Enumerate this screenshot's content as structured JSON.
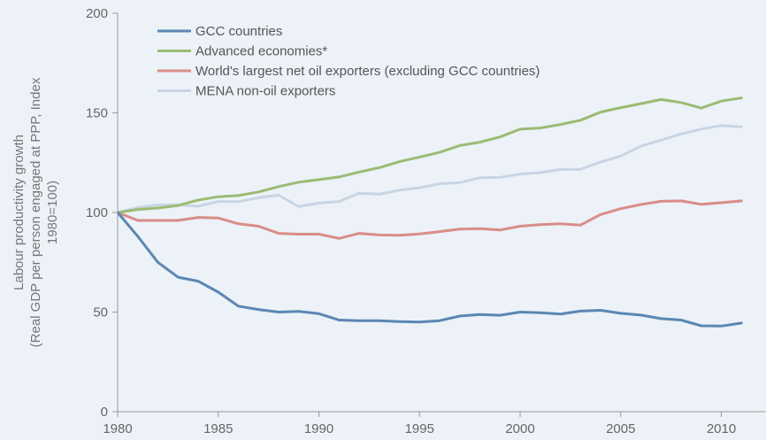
{
  "chart_data": {
    "type": "line",
    "title": "",
    "ylabel_lines": [
      "Labour productivity growth",
      "(Real GDP per person engaged at PPP, Index",
      "1980=100)"
    ],
    "xlabel": "",
    "x": [
      1980,
      1981,
      1982,
      1983,
      1984,
      1985,
      1986,
      1987,
      1988,
      1989,
      1990,
      1991,
      1992,
      1993,
      1994,
      1995,
      1996,
      1997,
      1998,
      1999,
      2000,
      2001,
      2002,
      2003,
      2004,
      2005,
      2006,
      2007,
      2008,
      2009,
      2010,
      2011
    ],
    "xlim": [
      1980,
      2011
    ],
    "ylim": [
      0,
      200
    ],
    "x_ticks": [
      1980,
      1985,
      1990,
      1995,
      2000,
      2005,
      2010
    ],
    "y_ticks": [
      0,
      50,
      100,
      150,
      200
    ],
    "grid": false,
    "legend_position": "top-left",
    "series": [
      {
        "name": "GCC countries",
        "color": "#5b87b2",
        "values": [
          100,
          88,
          75,
          67.5,
          65.5,
          60,
          53,
          51.3,
          50,
          50.3,
          49.2,
          46,
          45.7,
          45.7,
          45.2,
          45,
          45.7,
          48,
          48.8,
          48.4,
          50,
          49.7,
          49,
          50.5,
          50.9,
          49.4,
          48.5,
          46.7,
          46,
          43.1,
          43,
          44.5
        ]
      },
      {
        "name": "Advanced economies*",
        "color": "#9cbb74",
        "values": [
          100,
          101.5,
          102.2,
          103.5,
          106.2,
          107.9,
          108.5,
          110.3,
          113,
          115.2,
          116.5,
          117.8,
          120.3,
          122.5,
          125.5,
          127.8,
          130.2,
          133.6,
          135.3,
          137.9,
          141.8,
          142.4,
          144.2,
          146.3,
          150.4,
          152.6,
          154.6,
          156.7,
          155.2,
          152.4,
          155.9,
          157.5
        ]
      },
      {
        "name": "World's largest net oil exporters (excluding GCC countries)",
        "color": "#d98d86",
        "values": [
          100,
          96,
          96,
          96,
          97.5,
          97.2,
          94.3,
          93.1,
          89.5,
          89.1,
          89.1,
          87,
          89.5,
          88.7,
          88.6,
          89.2,
          90.4,
          91.7,
          91.9,
          91.2,
          93.1,
          93.9,
          94.3,
          93.7,
          99,
          101.9,
          104,
          105.6,
          105.8,
          104.1,
          104.9,
          105.8
        ]
      },
      {
        "name": "MENA non-oil exporters",
        "color": "#c8d5e4",
        "values": [
          100,
          102.5,
          103.8,
          103.8,
          103.1,
          105.5,
          105.4,
          107.4,
          108.7,
          103,
          104.7,
          105.5,
          109.6,
          109.2,
          111.2,
          112.4,
          114.4,
          115,
          117.4,
          117.6,
          119.3,
          120,
          121.6,
          121.7,
          125.3,
          128.3,
          133.3,
          136.3,
          139.4,
          141.8,
          143.7,
          143
        ]
      }
    ]
  }
}
